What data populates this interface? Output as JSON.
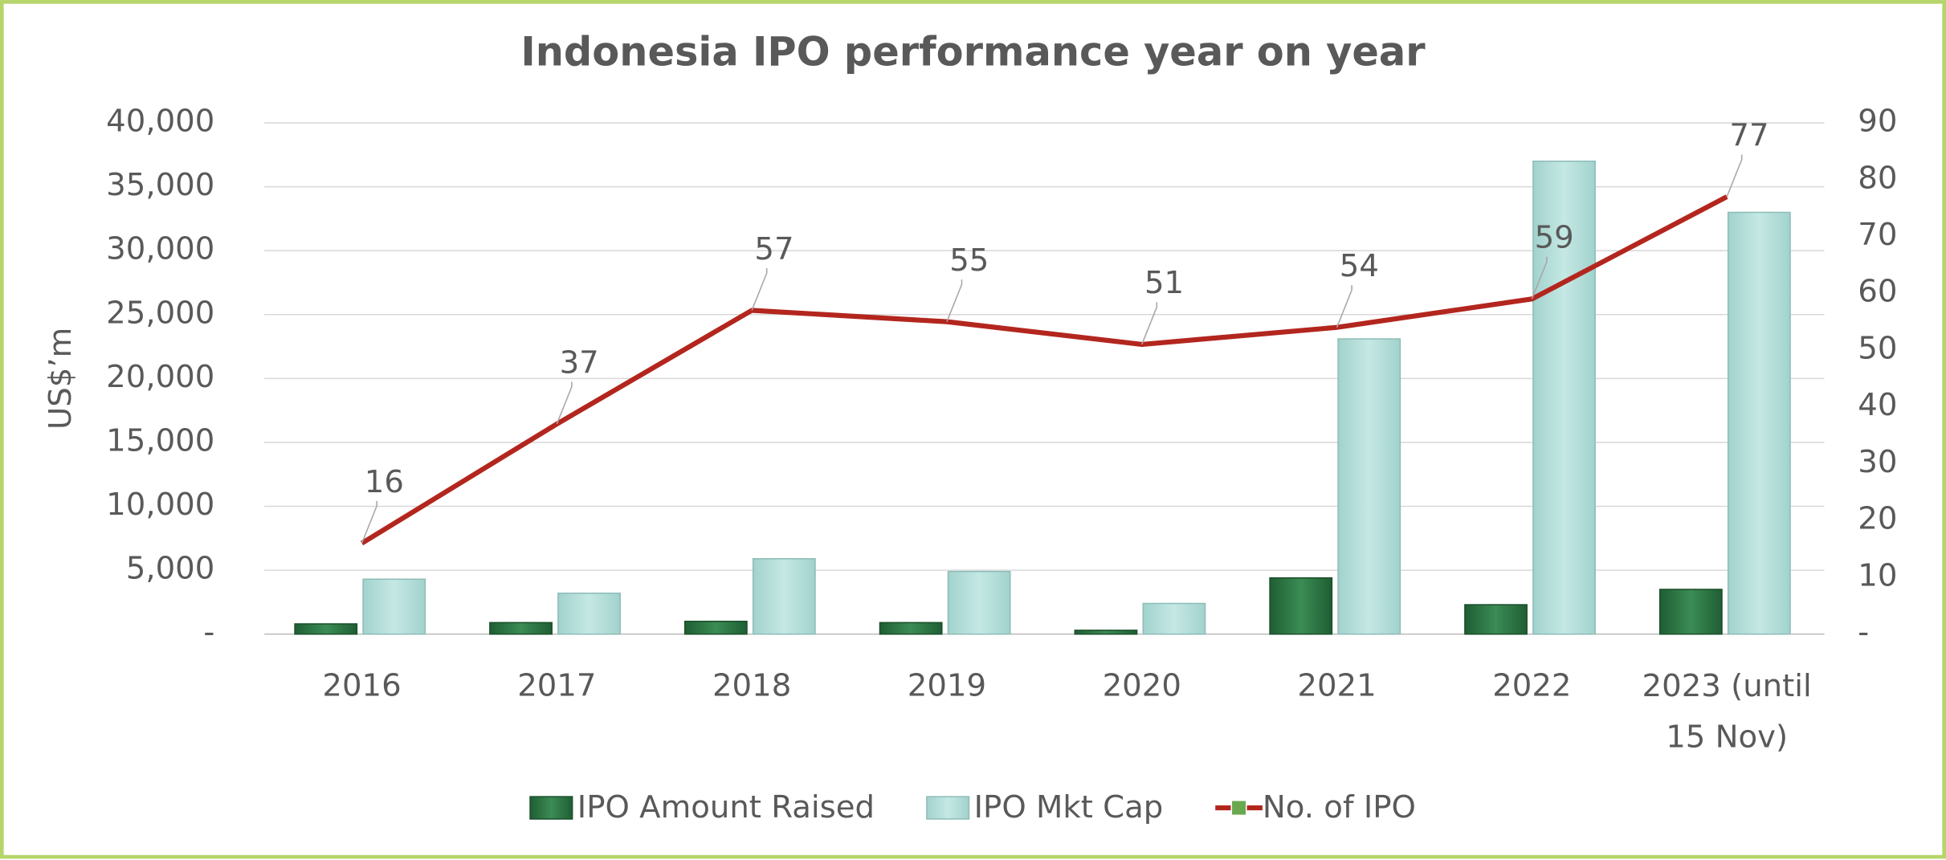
{
  "chart_data": {
    "type": "bar-line",
    "title": "Indonesia IPO performance year on year",
    "y_label": "US$’m",
    "categories": [
      "2016",
      "2017",
      "2018",
      "2019",
      "2020",
      "2021",
      "2022",
      "2023 (until 15 Nov)"
    ],
    "series": [
      {
        "name": "IPO Amount Raised",
        "type": "bar",
        "color": "#2f7d48",
        "values": [
          800,
          900,
          1000,
          900,
          300,
          4400,
          2300,
          3500
        ]
      },
      {
        "name": "IPO Mkt Cap",
        "type": "bar",
        "color": "#b8e1dd",
        "values": [
          4300,
          3200,
          5900,
          4900,
          2400,
          23100,
          37000,
          33000
        ]
      },
      {
        "name": "No. of IPO",
        "type": "line",
        "axis": "y2",
        "color": "#b3261e",
        "values": [
          16,
          37,
          57,
          55,
          51,
          54,
          59,
          77
        ]
      }
    ],
    "ylim": [
      0,
      40000
    ],
    "yticks": [
      {
        "value": 0,
        "label": "-"
      },
      {
        "value": 5000,
        "label": "5,000"
      },
      {
        "value": 10000,
        "label": "10,000"
      },
      {
        "value": 15000,
        "label": "15,000"
      },
      {
        "value": 20000,
        "label": "20,000"
      },
      {
        "value": 25000,
        "label": "25,000"
      },
      {
        "value": 30000,
        "label": "30,000"
      },
      {
        "value": 35000,
        "label": "35,000"
      },
      {
        "value": 40000,
        "label": "40,000"
      }
    ],
    "y2lim": [
      0,
      90
    ],
    "y2ticks": [
      {
        "value": 0,
        "label": "-"
      },
      10,
      20,
      30,
      40,
      50,
      60,
      70,
      80,
      90
    ],
    "grid": true,
    "legend": "bottom"
  }
}
